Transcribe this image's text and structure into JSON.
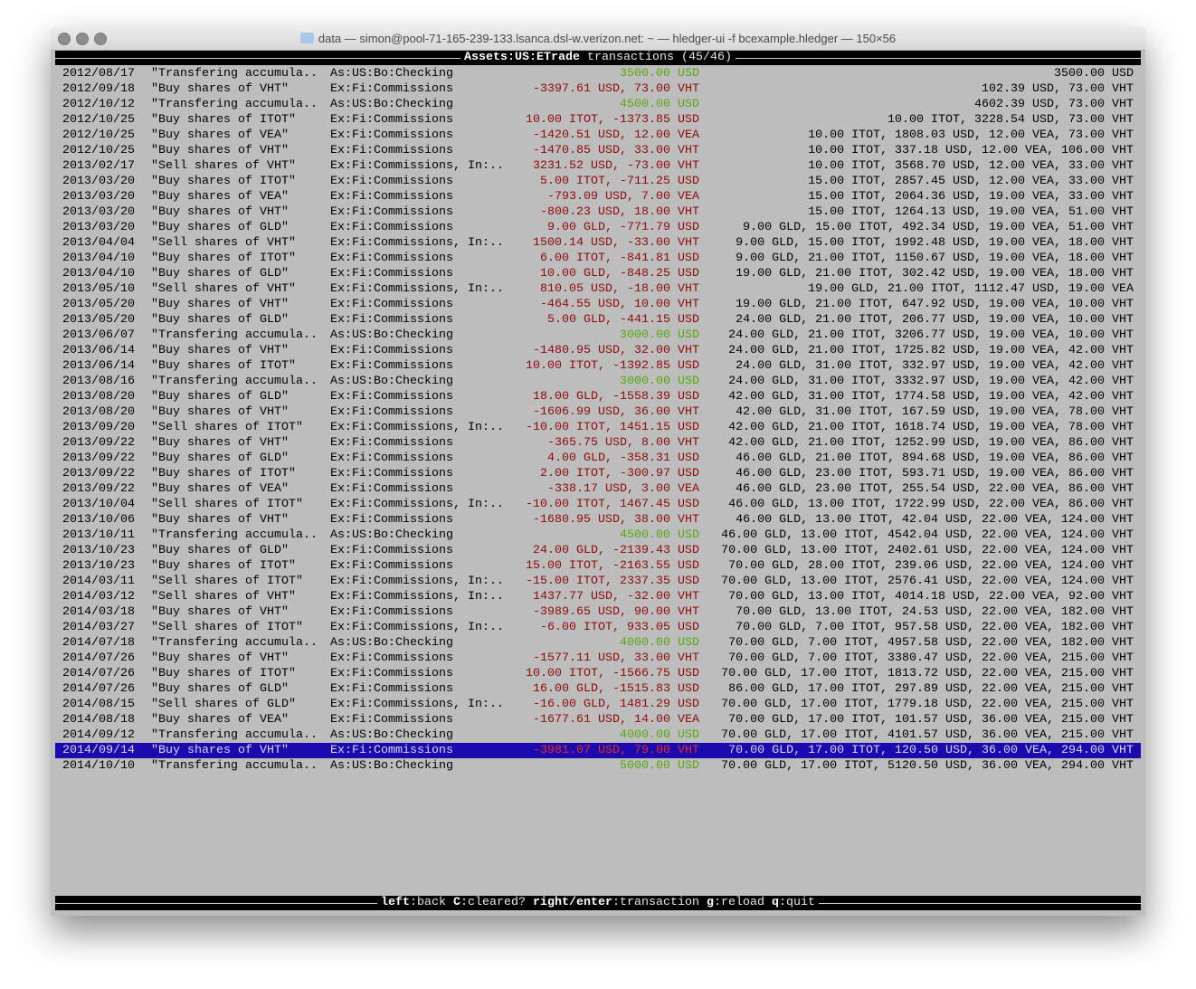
{
  "window": {
    "title": "data — simon@pool-71-165-239-133.lsanca.dsl-w.verizon.net: ~ — hledger-ui -f bcexample.hledger — 150×56",
    "folder_icon": "folder-icon"
  },
  "header": {
    "account": "Assets:US:ETrade",
    "suffix": "transactions (45/46)"
  },
  "colors": {
    "background": "#bdbdbd",
    "negative_amount": "#8e0a0a",
    "positive_amount": "#56a80c",
    "selection": "#1a0ab0"
  },
  "selected_index": 44,
  "transactions": [
    {
      "date": "2012/08/17",
      "desc": "\"Transfering accumula..",
      "acct": "As:US:Bo:Checking",
      "amt": "3500.00 USD",
      "bal": "3500.00 USD",
      "pos": true
    },
    {
      "date": "2012/09/18",
      "desc": "\"Buy shares of VHT\"",
      "acct": "Ex:Fi:Commissions",
      "amt": "-3397.61 USD, 73.00 VHT",
      "bal": "102.39 USD, 73.00 VHT"
    },
    {
      "date": "2012/10/12",
      "desc": "\"Transfering accumula..",
      "acct": "As:US:Bo:Checking",
      "amt": "4500.00 USD",
      "bal": "4602.39 USD, 73.00 VHT",
      "pos": true
    },
    {
      "date": "2012/10/25",
      "desc": "\"Buy shares of ITOT\"",
      "acct": "Ex:Fi:Commissions",
      "amt": "10.00 ITOT, -1373.85 USD",
      "bal": "10.00 ITOT, 3228.54 USD, 73.00 VHT"
    },
    {
      "date": "2012/10/25",
      "desc": "\"Buy shares of VEA\"",
      "acct": "Ex:Fi:Commissions",
      "amt": "-1420.51 USD, 12.00 VEA",
      "bal": "10.00 ITOT, 1808.03 USD, 12.00 VEA, 73.00 VHT"
    },
    {
      "date": "2012/10/25",
      "desc": "\"Buy shares of VHT\"",
      "acct": "Ex:Fi:Commissions",
      "amt": "-1470.85 USD, 33.00 VHT",
      "bal": "10.00 ITOT, 337.18 USD, 12.00 VEA, 106.00 VHT"
    },
    {
      "date": "2013/02/17",
      "desc": "\"Sell shares of VHT\"",
      "acct": "Ex:Fi:Commissions, In:..",
      "amt": "3231.52 USD, -73.00 VHT",
      "bal": "10.00 ITOT, 3568.70 USD, 12.00 VEA, 33.00 VHT"
    },
    {
      "date": "2013/03/20",
      "desc": "\"Buy shares of ITOT\"",
      "acct": "Ex:Fi:Commissions",
      "amt": "5.00 ITOT, -711.25 USD",
      "bal": "15.00 ITOT, 2857.45 USD, 12.00 VEA, 33.00 VHT"
    },
    {
      "date": "2013/03/20",
      "desc": "\"Buy shares of VEA\"",
      "acct": "Ex:Fi:Commissions",
      "amt": "-793.09 USD, 7.00 VEA",
      "bal": "15.00 ITOT, 2064.36 USD, 19.00 VEA, 33.00 VHT"
    },
    {
      "date": "2013/03/20",
      "desc": "\"Buy shares of VHT\"",
      "acct": "Ex:Fi:Commissions",
      "amt": "-800.23 USD, 18.00 VHT",
      "bal": "15.00 ITOT, 1264.13 USD, 19.00 VEA, 51.00 VHT"
    },
    {
      "date": "2013/03/20",
      "desc": "\"Buy shares of GLD\"",
      "acct": "Ex:Fi:Commissions",
      "amt": "9.00 GLD, -771.79 USD",
      "bal": "9.00 GLD, 15.00 ITOT, 492.34 USD, 19.00 VEA, 51.00 VHT"
    },
    {
      "date": "2013/04/04",
      "desc": "\"Sell shares of VHT\"",
      "acct": "Ex:Fi:Commissions, In:..",
      "amt": "1500.14 USD, -33.00 VHT",
      "bal": "9.00 GLD, 15.00 ITOT, 1992.48 USD, 19.00 VEA, 18.00 VHT"
    },
    {
      "date": "2013/04/10",
      "desc": "\"Buy shares of ITOT\"",
      "acct": "Ex:Fi:Commissions",
      "amt": "6.00 ITOT, -841.81 USD",
      "bal": "9.00 GLD, 21.00 ITOT, 1150.67 USD, 19.00 VEA, 18.00 VHT"
    },
    {
      "date": "2013/04/10",
      "desc": "\"Buy shares of GLD\"",
      "acct": "Ex:Fi:Commissions",
      "amt": "10.00 GLD, -848.25 USD",
      "bal": "19.00 GLD, 21.00 ITOT, 302.42 USD, 19.00 VEA, 18.00 VHT"
    },
    {
      "date": "2013/05/10",
      "desc": "\"Sell shares of VHT\"",
      "acct": "Ex:Fi:Commissions, In:..",
      "amt": "810.05 USD, -18.00 VHT",
      "bal": "19.00 GLD, 21.00 ITOT, 1112.47 USD, 19.00 VEA"
    },
    {
      "date": "2013/05/20",
      "desc": "\"Buy shares of VHT\"",
      "acct": "Ex:Fi:Commissions",
      "amt": "-464.55 USD, 10.00 VHT",
      "bal": "19.00 GLD, 21.00 ITOT, 647.92 USD, 19.00 VEA, 10.00 VHT"
    },
    {
      "date": "2013/05/20",
      "desc": "\"Buy shares of GLD\"",
      "acct": "Ex:Fi:Commissions",
      "amt": "5.00 GLD, -441.15 USD",
      "bal": "24.00 GLD, 21.00 ITOT, 206.77 USD, 19.00 VEA, 10.00 VHT"
    },
    {
      "date": "2013/06/07",
      "desc": "\"Transfering accumula..",
      "acct": "As:US:Bo:Checking",
      "amt": "3000.00 USD",
      "bal": "24.00 GLD, 21.00 ITOT, 3206.77 USD, 19.00 VEA, 10.00 VHT",
      "pos": true
    },
    {
      "date": "2013/06/14",
      "desc": "\"Buy shares of VHT\"",
      "acct": "Ex:Fi:Commissions",
      "amt": "-1480.95 USD, 32.00 VHT",
      "bal": "24.00 GLD, 21.00 ITOT, 1725.82 USD, 19.00 VEA, 42.00 VHT"
    },
    {
      "date": "2013/06/14",
      "desc": "\"Buy shares of ITOT\"",
      "acct": "Ex:Fi:Commissions",
      "amt": "10.00 ITOT, -1392.85 USD",
      "bal": "24.00 GLD, 31.00 ITOT, 332.97 USD, 19.00 VEA, 42.00 VHT"
    },
    {
      "date": "2013/08/16",
      "desc": "\"Transfering accumula..",
      "acct": "As:US:Bo:Checking",
      "amt": "3000.00 USD",
      "bal": "24.00 GLD, 31.00 ITOT, 3332.97 USD, 19.00 VEA, 42.00 VHT",
      "pos": true
    },
    {
      "date": "2013/08/20",
      "desc": "\"Buy shares of GLD\"",
      "acct": "Ex:Fi:Commissions",
      "amt": "18.00 GLD, -1558.39 USD",
      "bal": "42.00 GLD, 31.00 ITOT, 1774.58 USD, 19.00 VEA, 42.00 VHT"
    },
    {
      "date": "2013/08/20",
      "desc": "\"Buy shares of VHT\"",
      "acct": "Ex:Fi:Commissions",
      "amt": "-1606.99 USD, 36.00 VHT",
      "bal": "42.00 GLD, 31.00 ITOT, 167.59 USD, 19.00 VEA, 78.00 VHT"
    },
    {
      "date": "2013/09/20",
      "desc": "\"Sell shares of ITOT\"",
      "acct": "Ex:Fi:Commissions, In:..",
      "amt": "-10.00 ITOT, 1451.15 USD",
      "bal": "42.00 GLD, 21.00 ITOT, 1618.74 USD, 19.00 VEA, 78.00 VHT"
    },
    {
      "date": "2013/09/22",
      "desc": "\"Buy shares of VHT\"",
      "acct": "Ex:Fi:Commissions",
      "amt": "-365.75 USD, 8.00 VHT",
      "bal": "42.00 GLD, 21.00 ITOT, 1252.99 USD, 19.00 VEA, 86.00 VHT"
    },
    {
      "date": "2013/09/22",
      "desc": "\"Buy shares of GLD\"",
      "acct": "Ex:Fi:Commissions",
      "amt": "4.00 GLD, -358.31 USD",
      "bal": "46.00 GLD, 21.00 ITOT, 894.68 USD, 19.00 VEA, 86.00 VHT"
    },
    {
      "date": "2013/09/22",
      "desc": "\"Buy shares of ITOT\"",
      "acct": "Ex:Fi:Commissions",
      "amt": "2.00 ITOT, -300.97 USD",
      "bal": "46.00 GLD, 23.00 ITOT, 593.71 USD, 19.00 VEA, 86.00 VHT"
    },
    {
      "date": "2013/09/22",
      "desc": "\"Buy shares of VEA\"",
      "acct": "Ex:Fi:Commissions",
      "amt": "-338.17 USD, 3.00 VEA",
      "bal": "46.00 GLD, 23.00 ITOT, 255.54 USD, 22.00 VEA, 86.00 VHT"
    },
    {
      "date": "2013/10/04",
      "desc": "\"Sell shares of ITOT\"",
      "acct": "Ex:Fi:Commissions, In:..",
      "amt": "-10.00 ITOT, 1467.45 USD",
      "bal": "46.00 GLD, 13.00 ITOT, 1722.99 USD, 22.00 VEA, 86.00 VHT"
    },
    {
      "date": "2013/10/06",
      "desc": "\"Buy shares of VHT\"",
      "acct": "Ex:Fi:Commissions",
      "amt": "-1680.95 USD, 38.00 VHT",
      "bal": "46.00 GLD, 13.00 ITOT, 42.04 USD, 22.00 VEA, 124.00 VHT"
    },
    {
      "date": "2013/10/11",
      "desc": "\"Transfering accumula..",
      "acct": "As:US:Bo:Checking",
      "amt": "4500.00 USD",
      "bal": "46.00 GLD, 13.00 ITOT, 4542.04 USD, 22.00 VEA, 124.00 VHT",
      "pos": true
    },
    {
      "date": "2013/10/23",
      "desc": "\"Buy shares of GLD\"",
      "acct": "Ex:Fi:Commissions",
      "amt": "24.00 GLD, -2139.43 USD",
      "bal": "70.00 GLD, 13.00 ITOT, 2402.61 USD, 22.00 VEA, 124.00 VHT"
    },
    {
      "date": "2013/10/23",
      "desc": "\"Buy shares of ITOT\"",
      "acct": "Ex:Fi:Commissions",
      "amt": "15.00 ITOT, -2163.55 USD",
      "bal": "70.00 GLD, 28.00 ITOT, 239.06 USD, 22.00 VEA, 124.00 VHT"
    },
    {
      "date": "2014/03/11",
      "desc": "\"Sell shares of ITOT\"",
      "acct": "Ex:Fi:Commissions, In:..",
      "amt": "-15.00 ITOT, 2337.35 USD",
      "bal": "70.00 GLD, 13.00 ITOT, 2576.41 USD, 22.00 VEA, 124.00 VHT"
    },
    {
      "date": "2014/03/12",
      "desc": "\"Sell shares of VHT\"",
      "acct": "Ex:Fi:Commissions, In:..",
      "amt": "1437.77 USD, -32.00 VHT",
      "bal": "70.00 GLD, 13.00 ITOT, 4014.18 USD, 22.00 VEA, 92.00 VHT"
    },
    {
      "date": "2014/03/18",
      "desc": "\"Buy shares of VHT\"",
      "acct": "Ex:Fi:Commissions",
      "amt": "-3989.65 USD, 90.00 VHT",
      "bal": "70.00 GLD, 13.00 ITOT, 24.53 USD, 22.00 VEA, 182.00 VHT"
    },
    {
      "date": "2014/03/27",
      "desc": "\"Sell shares of ITOT\"",
      "acct": "Ex:Fi:Commissions, In:..",
      "amt": "-6.00 ITOT, 933.05 USD",
      "bal": "70.00 GLD, 7.00 ITOT, 957.58 USD, 22.00 VEA, 182.00 VHT"
    },
    {
      "date": "2014/07/18",
      "desc": "\"Transfering accumula..",
      "acct": "As:US:Bo:Checking",
      "amt": "4000.00 USD",
      "bal": "70.00 GLD, 7.00 ITOT, 4957.58 USD, 22.00 VEA, 182.00 VHT",
      "pos": true
    },
    {
      "date": "2014/07/26",
      "desc": "\"Buy shares of VHT\"",
      "acct": "Ex:Fi:Commissions",
      "amt": "-1577.11 USD, 33.00 VHT",
      "bal": "70.00 GLD, 7.00 ITOT, 3380.47 USD, 22.00 VEA, 215.00 VHT"
    },
    {
      "date": "2014/07/26",
      "desc": "\"Buy shares of ITOT\"",
      "acct": "Ex:Fi:Commissions",
      "amt": "10.00 ITOT, -1566.75 USD",
      "bal": "70.00 GLD, 17.00 ITOT, 1813.72 USD, 22.00 VEA, 215.00 VHT"
    },
    {
      "date": "2014/07/26",
      "desc": "\"Buy shares of GLD\"",
      "acct": "Ex:Fi:Commissions",
      "amt": "16.00 GLD, -1515.83 USD",
      "bal": "86.00 GLD, 17.00 ITOT, 297.89 USD, 22.00 VEA, 215.00 VHT"
    },
    {
      "date": "2014/08/15",
      "desc": "\"Sell shares of GLD\"",
      "acct": "Ex:Fi:Commissions, In:..",
      "amt": "-16.00 GLD, 1481.29 USD",
      "bal": "70.00 GLD, 17.00 ITOT, 1779.18 USD, 22.00 VEA, 215.00 VHT"
    },
    {
      "date": "2014/08/18",
      "desc": "\"Buy shares of VEA\"",
      "acct": "Ex:Fi:Commissions",
      "amt": "-1677.61 USD, 14.00 VEA",
      "bal": "70.00 GLD, 17.00 ITOT, 101.57 USD, 36.00 VEA, 215.00 VHT"
    },
    {
      "date": "2014/09/12",
      "desc": "\"Transfering accumula..",
      "acct": "As:US:Bo:Checking",
      "amt": "4000.00 USD",
      "bal": "70.00 GLD, 17.00 ITOT, 4101.57 USD, 36.00 VEA, 215.00 VHT",
      "pos": true
    },
    {
      "date": "2014/09/14",
      "desc": "\"Buy shares of VHT\"",
      "acct": "Ex:Fi:Commissions",
      "amt": "-3981.07 USD, 79.00 VHT",
      "bal": "70.00 GLD, 17.00 ITOT, 120.50 USD, 36.00 VEA, 294.00 VHT"
    },
    {
      "date": "2014/10/10",
      "desc": "\"Transfering accumula..",
      "acct": "As:US:Bo:Checking",
      "amt": "5000.00 USD",
      "bal": "70.00 GLD, 17.00 ITOT, 5120.50 USD, 36.00 VEA, 294.00 VHT",
      "pos": true
    }
  ],
  "footer": {
    "k1": "left",
    "v1": ":back ",
    "k2": "C",
    "v2": ":cleared? ",
    "k3": "right/enter",
    "v3": ":transaction ",
    "k4": "g",
    "v4": ":reload ",
    "k5": "q",
    "v5": ":quit"
  }
}
